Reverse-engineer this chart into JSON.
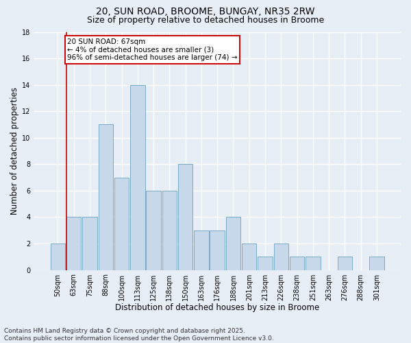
{
  "title1": "20, SUN ROAD, BROOME, BUNGAY, NR35 2RW",
  "title2": "Size of property relative to detached houses in Broome",
  "xlabel": "Distribution of detached houses by size in Broome",
  "ylabel": "Number of detached properties",
  "categories": [
    "50sqm",
    "63sqm",
    "75sqm",
    "88sqm",
    "100sqm",
    "113sqm",
    "125sqm",
    "138sqm",
    "150sqm",
    "163sqm",
    "176sqm",
    "188sqm",
    "201sqm",
    "213sqm",
    "226sqm",
    "238sqm",
    "251sqm",
    "263sqm",
    "276sqm",
    "288sqm",
    "301sqm"
  ],
  "values": [
    2,
    4,
    4,
    11,
    7,
    14,
    6,
    6,
    8,
    3,
    3,
    4,
    2,
    1,
    2,
    1,
    1,
    0,
    1,
    0,
    1
  ],
  "bar_color": "#c8d8eb",
  "bar_edgecolor": "#7aaac8",
  "bar_linewidth": 0.7,
  "annotation_box_text": "20 SUN ROAD: 67sqm\n← 4% of detached houses are smaller (3)\n96% of semi-detached houses are larger (74) →",
  "annotation_box_edgecolor": "#cc0000",
  "annotation_box_facecolor": "#ffffff",
  "vline_color": "#cc0000",
  "vline_x_index": 1,
  "background_color": "#e8eef5",
  "grid_color": "#ffffff",
  "ylim": [
    0,
    18
  ],
  "yticks": [
    0,
    2,
    4,
    6,
    8,
    10,
    12,
    14,
    16,
    18
  ],
  "footnote": "Contains HM Land Registry data © Crown copyright and database right 2025.\nContains public sector information licensed under the Open Government Licence v3.0.",
  "title_fontsize": 10,
  "subtitle_fontsize": 9,
  "axis_label_fontsize": 8.5,
  "tick_fontsize": 7,
  "annotation_fontsize": 7.5,
  "footnote_fontsize": 6.5
}
